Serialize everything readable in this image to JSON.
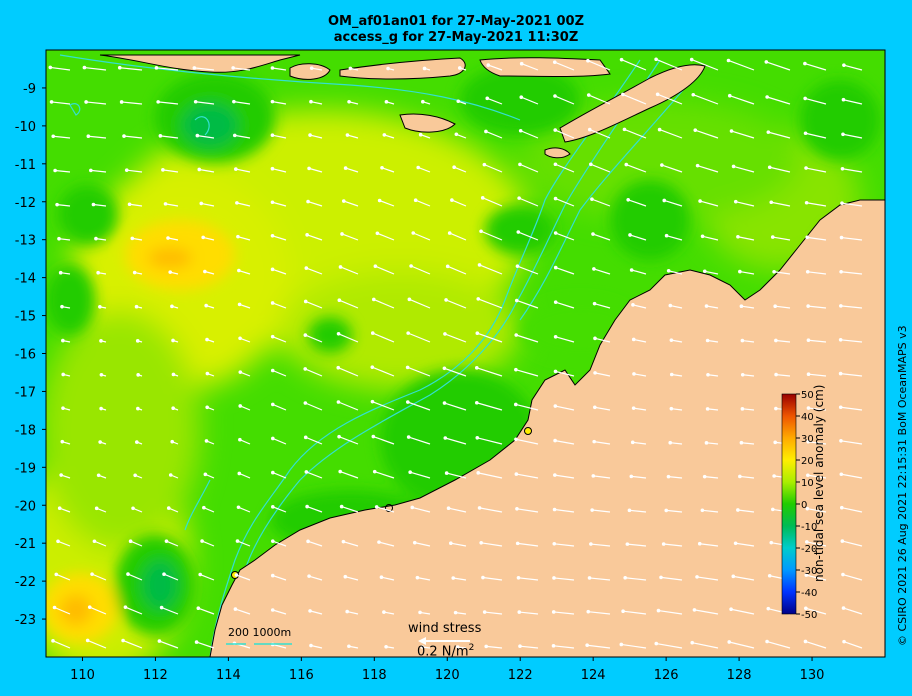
{
  "titles": {
    "line1": "OM_af01an01 for 27-May-2021 00Z",
    "line2": "access_g for 27-May-2021 11:30Z"
  },
  "map": {
    "lon_ticks": [
      "110",
      "112",
      "114",
      "116",
      "118",
      "120",
      "122",
      "124",
      "126",
      "128",
      "130"
    ],
    "lat_ticks": [
      "-9",
      "-10",
      "-11",
      "-12",
      "-13",
      "-14",
      "-15",
      "-16",
      "-17",
      "-18",
      "-19",
      "-20",
      "-21",
      "-22",
      "-23"
    ],
    "lon_range": [
      109,
      132
    ],
    "lat_range": [
      -24,
      -8
    ]
  },
  "colorbar": {
    "label": "non-tidal sea level anomaly (cm)",
    "ticks": [
      "50",
      "40",
      "30",
      "20",
      "10",
      "0",
      "-10",
      "-20",
      "-30",
      "-40",
      "-50"
    ],
    "range": [
      -50,
      50
    ]
  },
  "legend": {
    "wind_stress_title": "wind stress",
    "wind_stress_value": "0.2 N/m",
    "wind_stress_sup": "2",
    "isobath_label": "200  1000m"
  },
  "credit": "© CSIRO 2021  26 Aug 2021 22:15:31 BoM OceanMAPS v3",
  "colors": {
    "frame": "#00ccff",
    "land": "#f9c99a",
    "ocean_base": "#33dd00",
    "isobath": "#33e0d0"
  }
}
